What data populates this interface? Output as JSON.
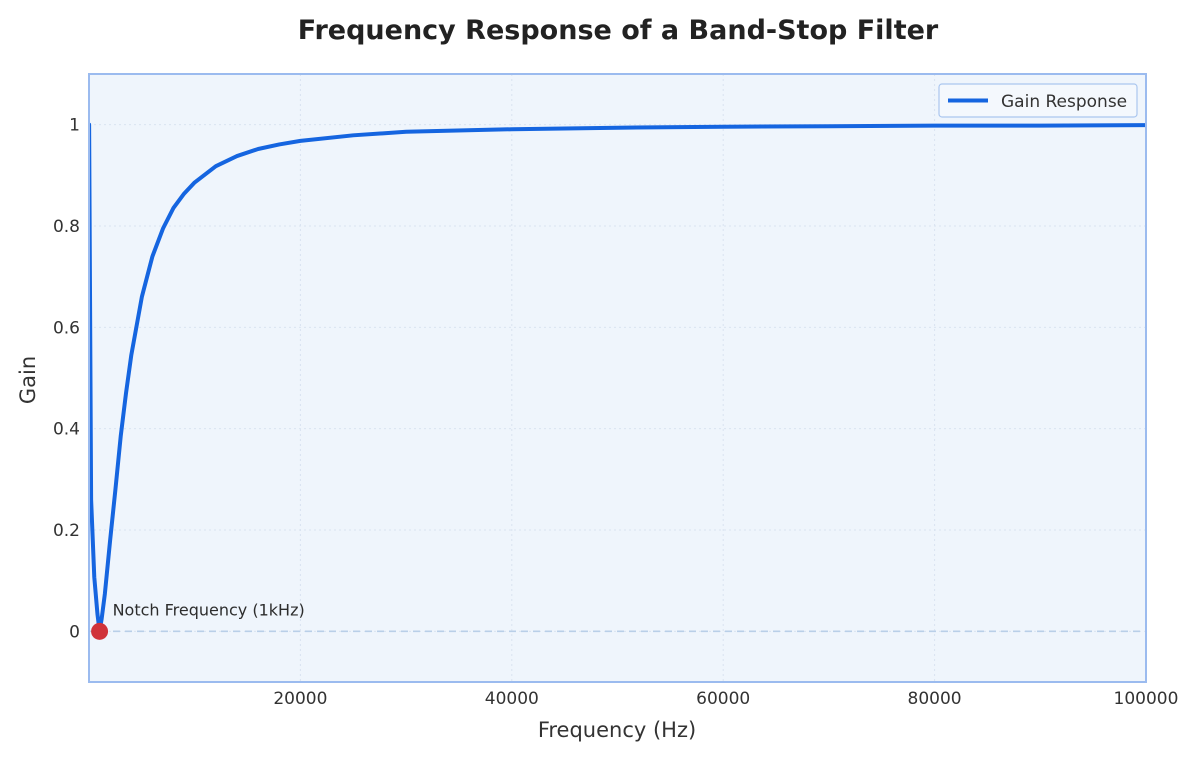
{
  "chart_data": {
    "type": "line",
    "title": "Frequency Response of a Band-Stop Filter",
    "xlabel": "Frequency (Hz)",
    "ylabel": "Gain",
    "xlim": [
      0,
      100000
    ],
    "ylim": [
      -0.1,
      1.1
    ],
    "x_ticks": [
      20000,
      40000,
      60000,
      80000,
      100000
    ],
    "x_tick_labels": [
      "20000",
      "40000",
      "60000",
      "80000",
      "100000"
    ],
    "y_ticks": [
      0,
      0.2,
      0.4,
      0.6,
      0.8,
      1
    ],
    "y_tick_labels": [
      "0",
      "0.2",
      "0.4",
      "0.6",
      "0.8",
      "1"
    ],
    "grid": true,
    "legend_position": "top-right",
    "series": [
      {
        "name": "Gain Response",
        "color": "#1565e0",
        "x": [
          10,
          200,
          500,
          800,
          1000,
          1200,
          1500,
          2000,
          2500,
          3000,
          3500,
          4000,
          5000,
          6000,
          7000,
          8000,
          9000,
          10000,
          12000,
          14000,
          16000,
          18000,
          20000,
          25000,
          30000,
          40000,
          50000,
          60000,
          70000,
          80000,
          90000,
          100000
        ],
        "y": [
          1.0,
          0.26,
          0.107,
          0.034,
          0.0,
          0.025,
          0.074,
          0.18,
          0.28,
          0.385,
          0.47,
          0.545,
          0.66,
          0.74,
          0.795,
          0.836,
          0.864,
          0.886,
          0.918,
          0.938,
          0.952,
          0.961,
          0.968,
          0.979,
          0.986,
          0.991,
          0.994,
          0.996,
          0.997,
          0.998,
          0.998,
          0.999
        ]
      }
    ],
    "baseline": {
      "y": 0,
      "style": "dashed",
      "color": "#b9cfe8"
    },
    "annotations": [
      {
        "text": "Notch Frequency (1kHz)",
        "x": 1000,
        "y": 0,
        "marker_color": "#d0333a"
      }
    ],
    "colors": {
      "plot_background": "#eff5fc",
      "plot_border": "#9bbbef",
      "grid": "#d9e3f0"
    }
  }
}
